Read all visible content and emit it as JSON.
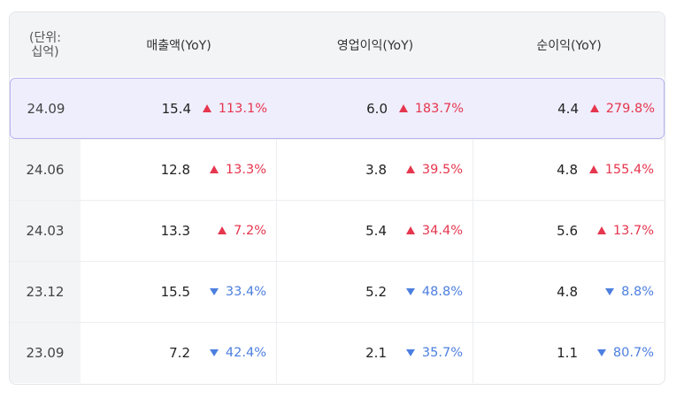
{
  "header": {
    "unit_label_line1": "(단위:",
    "unit_label_line2": "십억)",
    "col_revenue": "매출액(YoY)",
    "col_operating": "영업이익(YoY)",
    "col_net": "순이익(YoY)"
  },
  "rows": [
    {
      "period": "24.09",
      "revenue": "15.4",
      "revenue_yoy": "113.1%",
      "revenue_dir": "up",
      "operating": "6.0",
      "operating_yoy": "183.7%",
      "operating_dir": "up",
      "net": "4.4",
      "net_yoy": "279.8%",
      "net_dir": "up",
      "highlighted": true
    },
    {
      "period": "24.06",
      "revenue": "12.8",
      "revenue_yoy": "13.3%",
      "revenue_dir": "up",
      "operating": "3.8",
      "operating_yoy": "39.5%",
      "operating_dir": "up",
      "net": "4.8",
      "net_yoy": "155.4%",
      "net_dir": "up"
    },
    {
      "period": "24.03",
      "revenue": "13.3",
      "revenue_yoy": "7.2%",
      "revenue_dir": "up",
      "operating": "5.4",
      "operating_yoy": "34.4%",
      "operating_dir": "up",
      "net": "5.6",
      "net_yoy": "13.7%",
      "net_dir": "up"
    },
    {
      "period": "23.12",
      "revenue": "15.5",
      "revenue_yoy": "33.4%",
      "revenue_dir": "down",
      "operating": "5.2",
      "operating_yoy": "48.8%",
      "operating_dir": "down",
      "net": "4.8",
      "net_yoy": "8.8%",
      "net_dir": "down"
    },
    {
      "period": "23.09",
      "revenue": "7.2",
      "revenue_yoy": "42.4%",
      "revenue_dir": "down",
      "operating": "2.1",
      "operating_yoy": "35.7%",
      "operating_dir": "down",
      "net": "1.1",
      "net_yoy": "80.7%",
      "net_dir": "down"
    }
  ],
  "colors": {
    "up": "#e6364e",
    "down": "#4d7fe0",
    "highlight_bg": "#efeefd",
    "highlight_border": "#b9b4f0"
  },
  "icons": {
    "up": "triangle-up-icon",
    "down": "triangle-down-icon"
  }
}
